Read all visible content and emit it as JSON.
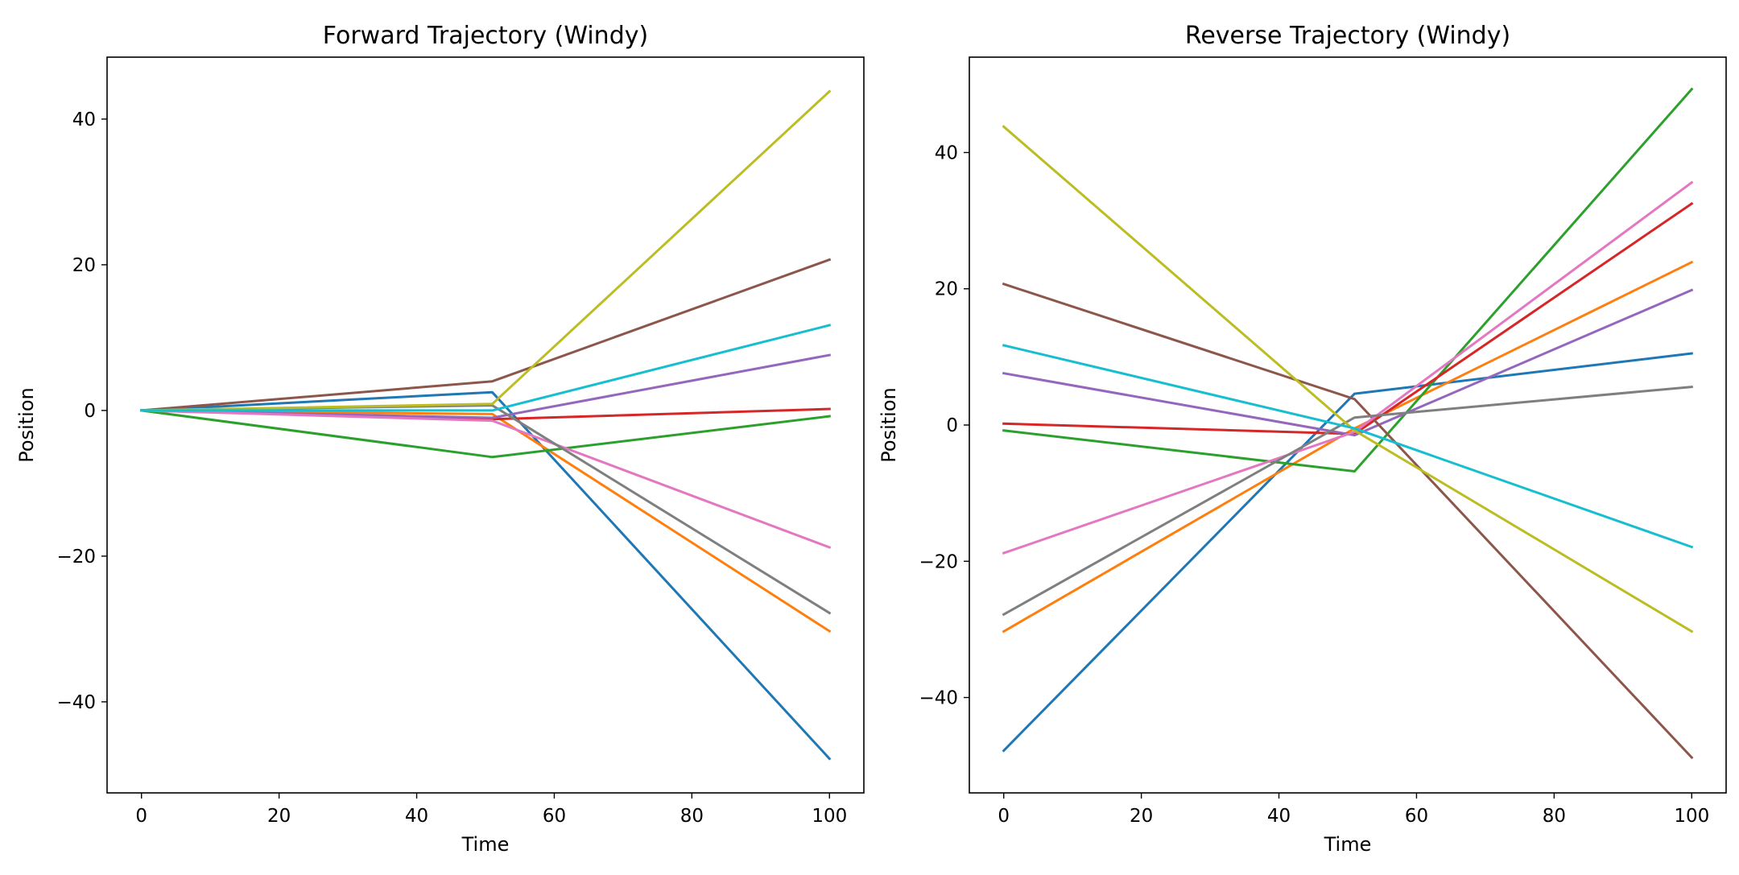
{
  "chart_data": [
    {
      "type": "line",
      "title": "Forward Trajectory (Windy)",
      "xlabel": "Time",
      "ylabel": "Position",
      "xlim": [
        -5,
        105
      ],
      "ylim": [
        -52.5,
        48.5
      ],
      "xticks": [
        0,
        20,
        40,
        60,
        80,
        100
      ],
      "yticks": [
        -40,
        -20,
        0,
        20,
        40
      ],
      "grid": false,
      "legend": false,
      "series": [
        {
          "color": "#1f77b4",
          "x": [
            0,
            51,
            100
          ],
          "y": [
            0,
            2.5,
            -47.8
          ]
        },
        {
          "color": "#ff7f0e",
          "x": [
            0,
            51,
            100
          ],
          "y": [
            0,
            -0.5,
            -30.3
          ]
        },
        {
          "color": "#2ca02c",
          "x": [
            0,
            51,
            100
          ],
          "y": [
            0,
            -6.4,
            -0.8
          ]
        },
        {
          "color": "#d62728",
          "x": [
            0,
            51,
            100
          ],
          "y": [
            0,
            -1.2,
            0.2
          ]
        },
        {
          "color": "#9467bd",
          "x": [
            0,
            51,
            100
          ],
          "y": [
            0,
            -1.0,
            7.6
          ]
        },
        {
          "color": "#8c564b",
          "x": [
            0,
            51,
            100
          ],
          "y": [
            0,
            4.0,
            20.7
          ]
        },
        {
          "color": "#e377c2",
          "x": [
            0,
            51,
            100
          ],
          "y": [
            0,
            -1.4,
            -18.8
          ]
        },
        {
          "color": "#7f7f7f",
          "x": [
            0,
            51,
            100
          ],
          "y": [
            0,
            0.7,
            -27.8
          ]
        },
        {
          "color": "#bcbd22",
          "x": [
            0,
            51,
            100
          ],
          "y": [
            0,
            0.9,
            43.8
          ]
        },
        {
          "color": "#17becf",
          "x": [
            0,
            51,
            100
          ],
          "y": [
            0,
            0.0,
            11.7
          ]
        }
      ]
    },
    {
      "type": "line",
      "title": "Reverse Trajectory (Windy)",
      "xlabel": "Time",
      "ylabel": "Position",
      "xlim": [
        -5,
        105
      ],
      "ylim": [
        -54.0,
        54.0
      ],
      "xticks": [
        0,
        20,
        40,
        60,
        80,
        100
      ],
      "yticks": [
        -40,
        -20,
        0,
        20,
        40
      ],
      "grid": false,
      "legend": false,
      "series": [
        {
          "color": "#1f77b4",
          "x": [
            0,
            51,
            100
          ],
          "y": [
            -47.8,
            4.6,
            10.5
          ]
        },
        {
          "color": "#ff7f0e",
          "x": [
            0,
            51,
            100
          ],
          "y": [
            -30.3,
            -0.5,
            23.9
          ]
        },
        {
          "color": "#2ca02c",
          "x": [
            0,
            51,
            100
          ],
          "y": [
            -0.8,
            -6.8,
            49.3
          ]
        },
        {
          "color": "#d62728",
          "x": [
            0,
            51,
            100
          ],
          "y": [
            0.2,
            -1.3,
            32.5
          ]
        },
        {
          "color": "#9467bd",
          "x": [
            0,
            51,
            100
          ],
          "y": [
            7.6,
            -1.5,
            19.8
          ]
        },
        {
          "color": "#8c564b",
          "x": [
            0,
            51,
            100
          ],
          "y": [
            20.7,
            3.8,
            -48.8
          ]
        },
        {
          "color": "#e377c2",
          "x": [
            0,
            51,
            100
          ],
          "y": [
            -18.8,
            -1.0,
            35.6
          ]
        },
        {
          "color": "#7f7f7f",
          "x": [
            0,
            51,
            100
          ],
          "y": [
            -27.8,
            1.1,
            5.6
          ]
        },
        {
          "color": "#bcbd22",
          "x": [
            0,
            51,
            100
          ],
          "y": [
            43.8,
            -0.8,
            -30.3
          ]
        },
        {
          "color": "#17becf",
          "x": [
            0,
            51,
            100
          ],
          "y": [
            11.7,
            -0.5,
            -17.9
          ]
        }
      ]
    }
  ]
}
